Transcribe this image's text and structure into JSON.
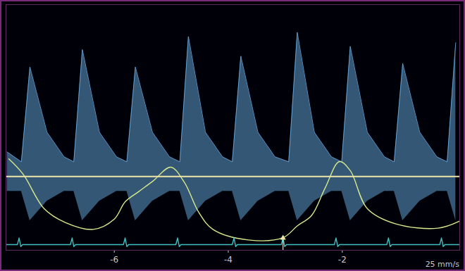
{
  "chart_data": {
    "type": "line",
    "xlim": [
      -7.9,
      0.06
    ],
    "xticks": [
      -6,
      -4,
      -2
    ],
    "ylim": [
      0,
      100
    ],
    "yticks": [],
    "tick_labels": "x",
    "grid": false,
    "baseline": 30,
    "cursor": {
      "x": -3.04,
      "top": 5
    },
    "annotations": [
      {
        "text": "25 mm/s"
      }
    ],
    "series": [
      {
        "type": "area",
        "color": "#6aaee4",
        "x": [
          -7.88,
          -7.63,
          -7.48,
          -7.18,
          -6.88,
          -6.71,
          -6.56,
          -6.26,
          -5.96,
          -5.78,
          -5.63,
          -5.33,
          -5.03,
          -4.85,
          -4.7,
          -4.4,
          -4.1,
          -3.93,
          -3.78,
          -3.48,
          -3.18,
          -2.94,
          -2.79,
          -2.49,
          -2.19,
          -2.01,
          -1.86,
          -1.56,
          -1.26,
          -1.09,
          -0.94,
          -0.64,
          -0.34,
          -0.16,
          -0.01
        ],
        "values": [
          40,
          36,
          74.6,
          48,
          38,
          36,
          81.7,
          48,
          38,
          36,
          74.6,
          48,
          38,
          36,
          87,
          48,
          38,
          36,
          79,
          48,
          38,
          36,
          88.7,
          48,
          38,
          36,
          83,
          48,
          38,
          36,
          76,
          48,
          38,
          36,
          84.5
        ],
        "lower": [
          24,
          24,
          12,
          20,
          24,
          24,
          12,
          20,
          24,
          24,
          12,
          20,
          24,
          24,
          12,
          20,
          24,
          24,
          12,
          20,
          24,
          24,
          12,
          20,
          24,
          24,
          12,
          20,
          24,
          24,
          12,
          20,
          24,
          24,
          12
        ]
      },
      {
        "type": "line",
        "color": "#d6e98c",
        "line_style": "smooth",
        "x": [
          -7.85,
          -7.6,
          -7.23,
          -6.86,
          -6.37,
          -6.0,
          -5.81,
          -5.57,
          -5.32,
          -5.01,
          -4.77,
          -4.52,
          -4.27,
          -3.65,
          -3.04,
          -2.79,
          -2.54,
          -2.3,
          -2.05,
          -1.86,
          -1.56,
          -1.06,
          -0.32,
          0.05
        ],
        "values": [
          37.2,
          31,
          16.9,
          11.3,
          8.5,
          12.7,
          19.7,
          23.9,
          28.2,
          33.8,
          27.6,
          15.5,
          8.5,
          4.2,
          5.1,
          9.9,
          14.1,
          25.4,
          36.1,
          32.4,
          16.9,
          10.7,
          9.0,
          11.8
        ]
      },
      {
        "type": "line",
        "color": "#3fbfbf",
        "line_style": "solid",
        "x": [
          -7.9,
          -7.7,
          -7.67,
          -7.64,
          -7.61,
          -6.77,
          -6.74,
          -6.71,
          -6.68,
          -5.84,
          -5.81,
          -5.78,
          -5.75,
          -4.92,
          -4.89,
          -4.86,
          -4.83,
          -3.93,
          -3.9,
          -3.87,
          -3.84,
          -3.07,
          -3.04,
          -3.01,
          -2.98,
          -2.14,
          -2.11,
          -2.08,
          -2.05,
          -1.22,
          -1.19,
          -1.16,
          -1.13,
          -0.29,
          -0.26,
          -0.23,
          -0.2,
          0.06
        ],
        "values": [
          2.3,
          2.3,
          5,
          1.5,
          2.3,
          2.3,
          5,
          1.5,
          2.3,
          2.3,
          5,
          1.5,
          2.3,
          2.3,
          5,
          1.5,
          2.3,
          2.3,
          5,
          1.5,
          2.3,
          2.3,
          5,
          1.5,
          2.3,
          2.3,
          5,
          1.5,
          2.3,
          2.3,
          5,
          1.5,
          2.3,
          2.3,
          5,
          1.5,
          2.3,
          2.3
        ]
      }
    ]
  }
}
